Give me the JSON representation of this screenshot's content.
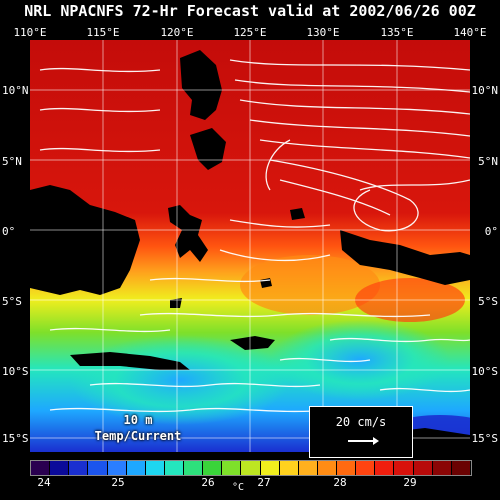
{
  "title": "NRL NPACNFS 72-Hr Forecast valid at 2002/06/26 00Z",
  "lon_labels": [
    "110°E",
    "115°E",
    "120°E",
    "125°E",
    "130°E",
    "135°E",
    "140°E"
  ],
  "lat_labels": [
    "10°N",
    "5°N",
    "0°",
    "5°S",
    "10°S",
    "15°S"
  ],
  "panel_label": {
    "line1": "10 m",
    "line2": "Temp/Current"
  },
  "scale": {
    "label": "20 cm/s"
  },
  "colorbar": {
    "ticks": [
      "24",
      "25",
      "26",
      "27",
      "28",
      "29"
    ],
    "unit": "°C",
    "colors": [
      "#2a0050",
      "#0b0a9a",
      "#1a2fd0",
      "#1c55ee",
      "#2a7eff",
      "#1ea8ff",
      "#1ed6f0",
      "#24e6be",
      "#2de07c",
      "#3ad43a",
      "#7ee02a",
      "#bde622",
      "#f0ee1e",
      "#ffd21e",
      "#ffb01e",
      "#ff8c14",
      "#ff6a10",
      "#ff4410",
      "#f01e0e",
      "#d8120c",
      "#b80a0a",
      "#8a0505",
      "#6a0202"
    ]
  }
}
